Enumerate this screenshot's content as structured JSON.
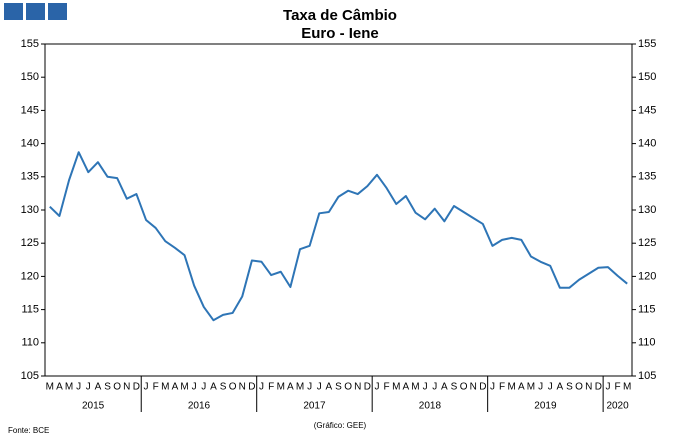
{
  "chart_data": {
    "type": "line",
    "title": "Taxa de Câmbio",
    "subtitle": "Euro - Iene",
    "source": "Fonte: BCE",
    "credit": "(Gráfico: GEE)",
    "categories": [
      "M",
      "A",
      "M",
      "J",
      "J",
      "A",
      "S",
      "O",
      "N",
      "D",
      "J",
      "F",
      "M",
      "A",
      "M",
      "J",
      "J",
      "A",
      "S",
      "O",
      "N",
      "D",
      "J",
      "F",
      "M",
      "A",
      "M",
      "J",
      "J",
      "A",
      "S",
      "O",
      "N",
      "D",
      "J",
      "F",
      "M",
      "A",
      "M",
      "J",
      "J",
      "A",
      "S",
      "O",
      "N",
      "D",
      "J",
      "F",
      "M",
      "A",
      "M",
      "J",
      "J",
      "A",
      "S",
      "O",
      "N",
      "D",
      "J",
      "F",
      "M"
    ],
    "years": [
      "2015",
      "2015",
      "2015",
      "2015",
      "2015",
      "2015",
      "2015",
      "2015",
      "2015",
      "2015",
      "2016",
      "2016",
      "2016",
      "2016",
      "2016",
      "2016",
      "2016",
      "2016",
      "2016",
      "2016",
      "2016",
      "2016",
      "2017",
      "2017",
      "2017",
      "2017",
      "2017",
      "2017",
      "2017",
      "2017",
      "2017",
      "2017",
      "2017",
      "2017",
      "2018",
      "2018",
      "2018",
      "2018",
      "2018",
      "2018",
      "2018",
      "2018",
      "2018",
      "2018",
      "2018",
      "2018",
      "2019",
      "2019",
      "2019",
      "2019",
      "2019",
      "2019",
      "2019",
      "2019",
      "2019",
      "2019",
      "2019",
      "2019",
      "2020",
      "2020",
      "2020"
    ],
    "series": [
      {
        "color": "#2e75b6",
        "values": [
          130.5,
          129.1,
          134.5,
          138.7,
          135.7,
          137.2,
          135.0,
          134.8,
          131.7,
          132.4,
          128.5,
          127.3,
          125.3,
          124.3,
          123.2,
          118.6,
          115.4,
          113.4,
          114.2,
          114.5,
          117.0,
          122.4,
          122.2,
          120.2,
          120.7,
          118.4,
          124.1,
          124.6,
          129.5,
          129.7,
          132.0,
          132.9,
          132.4,
          133.6,
          135.3,
          133.3,
          130.9,
          132.1,
          129.6,
          128.6,
          130.2,
          128.3,
          130.6,
          129.7,
          128.8,
          127.9,
          124.6,
          125.5,
          125.8,
          125.5,
          123.0,
          122.2,
          121.6,
          118.3,
          118.3,
          119.5,
          120.4,
          121.3,
          121.4,
          120.1,
          118.9
        ]
      }
    ],
    "ylim": [
      105,
      155
    ],
    "yticks": [
      105,
      110,
      115,
      120,
      125,
      130,
      135,
      140,
      145,
      150,
      155
    ],
    "y2lim": [
      105,
      155
    ],
    "y2ticks": [
      105,
      110,
      115,
      120,
      125,
      130,
      135,
      140,
      145,
      150,
      155
    ],
    "grid": false
  }
}
